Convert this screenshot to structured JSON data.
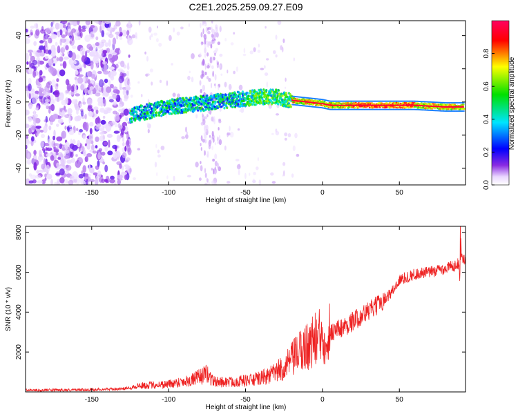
{
  "title": "C2E1.2025.259.09.27.E09",
  "colors": {
    "snr_line": "#ee2222",
    "axis": "#000000"
  },
  "chart_data": [
    {
      "type": "heatmap",
      "xlabel": "Height of straight line (km)",
      "ylabel": "Frequency (Hz)",
      "xlim": [
        -193,
        93
      ],
      "ylim": [
        -50,
        49
      ],
      "xticks": [
        -150,
        -100,
        -50,
        0,
        50
      ],
      "yticks": [
        -40,
        -20,
        0,
        20,
        40
      ],
      "xtick_labels": [
        "-150",
        "-100",
        "-50",
        "0",
        "50"
      ],
      "ytick_labels": [
        "-40",
        "-20",
        "0",
        "20",
        "40"
      ],
      "ridge": {
        "x": [
          -125,
          -110,
          -100,
          -90,
          -80,
          -70,
          -60,
          -50,
          -40,
          -30,
          -20,
          -10,
          0,
          5,
          10,
          20,
          40,
          60,
          80,
          92
        ],
        "y": [
          -8,
          -5,
          -3,
          -2,
          -1,
          0,
          1,
          2,
          3,
          3,
          1,
          0,
          -1,
          -2,
          -2,
          -2,
          -2,
          -2,
          -3,
          -3
        ]
      },
      "colorbar": {
        "label": "Normalized spectral amplitude",
        "range": [
          0,
          1
        ],
        "ticks": [
          0.0,
          0.2,
          0.4,
          0.6,
          0.8
        ],
        "tick_labels": [
          "0.0",
          "0.2",
          "0.4",
          "0.6",
          "0.8"
        ]
      }
    },
    {
      "type": "line",
      "xlabel": "Height of straight line (km)",
      "ylabel": "SNR (10 * v/v)",
      "xlim": [
        -193,
        93
      ],
      "ylim": [
        0,
        8300
      ],
      "xticks": [
        -150,
        -100,
        -50,
        0,
        50
      ],
      "yticks": [
        2000,
        4000,
        6000,
        8000
      ],
      "xtick_labels": [
        "-150",
        "-100",
        "-50",
        "0",
        "50"
      ],
      "ytick_labels": [
        "2000",
        "4000",
        "6000",
        "8000"
      ],
      "trend": {
        "x": [
          -193,
          -160,
          -130,
          -120,
          -100,
          -85,
          -75,
          -70,
          -60,
          -45,
          -35,
          -25,
          -15,
          -5,
          5,
          15,
          25,
          35,
          45,
          50,
          60,
          70,
          80,
          88,
          90,
          92
        ],
        "y": [
          80,
          100,
          150,
          300,
          400,
          600,
          900,
          500,
          500,
          600,
          800,
          1200,
          2000,
          2600,
          3000,
          3300,
          3800,
          4300,
          5000,
          5600,
          5900,
          6000,
          6200,
          6400,
          6800,
          6600
        ]
      }
    }
  ]
}
